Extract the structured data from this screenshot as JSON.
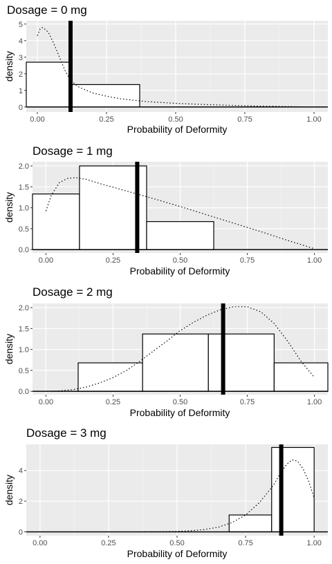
{
  "chart_data": [
    {
      "type": "bar",
      "title": "Dosage = 0 mg",
      "xlabel": "Probability of Deformity",
      "ylabel": "density",
      "xlim": [
        -0.04,
        1.05
      ],
      "ylim": [
        -0.3,
        5.2
      ],
      "x_ticks": [
        "0.00",
        "0.25",
        "0.50",
        "0.75",
        "1.00"
      ],
      "y_ticks": [
        "0",
        "1",
        "2",
        "3",
        "4",
        "5"
      ],
      "bins": [
        {
          "x0": -0.04,
          "x1": 0.12,
          "density": 2.7
        },
        {
          "x0": 0.12,
          "x1": 0.37,
          "density": 1.35
        }
      ],
      "vline": 0.12,
      "curve": {
        "x": [
          0.0,
          0.01,
          0.02,
          0.04,
          0.06,
          0.08,
          0.1,
          0.12,
          0.15,
          0.2,
          0.25,
          0.3,
          0.35,
          0.4,
          0.5,
          0.6,
          0.7,
          0.8,
          0.9,
          1.0
        ],
        "y": [
          4.3,
          4.7,
          4.8,
          4.5,
          3.8,
          3.0,
          2.2,
          1.6,
          1.2,
          0.85,
          0.65,
          0.5,
          0.4,
          0.32,
          0.22,
          0.15,
          0.1,
          0.06,
          0.03,
          0.0
        ]
      }
    },
    {
      "type": "bar",
      "title": "Dosage = 1 mg",
      "xlabel": "Probability of Deformity",
      "ylabel": "density",
      "xlim": [
        -0.05,
        1.05
      ],
      "ylim": [
        -0.08,
        2.1
      ],
      "x_ticks": [
        "0.00",
        "0.25",
        "0.50",
        "0.75",
        "1.00"
      ],
      "y_ticks": [
        "0.0",
        "0.5",
        "1.0",
        "1.5",
        "2.0"
      ],
      "bins": [
        {
          "x0": -0.05,
          "x1": 0.125,
          "density": 1.33
        },
        {
          "x0": 0.125,
          "x1": 0.375,
          "density": 2.0
        },
        {
          "x0": 0.375,
          "x1": 0.625,
          "density": 0.67
        }
      ],
      "vline": 0.34,
      "curve": {
        "x": [
          0.0,
          0.02,
          0.05,
          0.08,
          0.11,
          0.15,
          0.2,
          0.3,
          0.4,
          0.5,
          0.6,
          0.7,
          0.8,
          0.9,
          1.0
        ],
        "y": [
          0.92,
          1.3,
          1.6,
          1.7,
          1.72,
          1.68,
          1.58,
          1.4,
          1.22,
          1.03,
          0.83,
          0.63,
          0.43,
          0.22,
          0.02
        ]
      }
    },
    {
      "type": "bar",
      "title": "Dosage = 2 mg",
      "xlabel": "Probability of Deformity",
      "ylabel": "density",
      "xlim": [
        -0.05,
        1.05
      ],
      "ylim": [
        -0.08,
        2.1
      ],
      "x_ticks": [
        "0.00",
        "0.25",
        "0.50",
        "0.75",
        "1.00"
      ],
      "y_ticks": [
        "0.0",
        "0.5",
        "1.0",
        "1.5",
        "2.0"
      ],
      "bins": [
        {
          "x0": 0.12,
          "x1": 0.36,
          "density": 0.68
        },
        {
          "x0": 0.36,
          "x1": 0.605,
          "density": 1.37
        },
        {
          "x0": 0.605,
          "x1": 0.85,
          "density": 1.37
        },
        {
          "x0": 0.85,
          "x1": 1.05,
          "density": 0.68
        }
      ],
      "vline": 0.66,
      "curve": {
        "x": [
          0.0,
          0.05,
          0.1,
          0.15,
          0.2,
          0.25,
          0.3,
          0.35,
          0.4,
          0.45,
          0.5,
          0.55,
          0.6,
          0.65,
          0.7,
          0.75,
          0.8,
          0.85,
          0.9,
          0.95,
          1.0
        ],
        "y": [
          0.0,
          0.01,
          0.04,
          0.1,
          0.2,
          0.33,
          0.5,
          0.72,
          0.96,
          1.2,
          1.45,
          1.65,
          1.82,
          1.95,
          2.02,
          2.02,
          1.9,
          1.62,
          1.2,
          0.72,
          0.33
        ]
      }
    },
    {
      "type": "bar",
      "title": "Dosage = 3 mg",
      "xlabel": "Probability of Deformity",
      "ylabel": "density",
      "xlim": [
        -0.05,
        1.05
      ],
      "ylim": [
        -0.25,
        5.7
      ],
      "x_ticks": [
        "0.00",
        "0.25",
        "0.50",
        "0.75",
        "1.00"
      ],
      "y_ticks": [
        "0",
        "2",
        "4"
      ],
      "bins": [
        {
          "x0": 0.69,
          "x1": 0.845,
          "density": 1.1
        },
        {
          "x0": 0.845,
          "x1": 1.0,
          "density": 5.5
        }
      ],
      "vline": 0.88,
      "curve": {
        "x": [
          0.38,
          0.45,
          0.5,
          0.55,
          0.6,
          0.65,
          0.7,
          0.75,
          0.8,
          0.85,
          0.88,
          0.9,
          0.92,
          0.94,
          0.96,
          0.98,
          1.0
        ],
        "y": [
          0.0,
          0.01,
          0.03,
          0.07,
          0.15,
          0.3,
          0.6,
          1.1,
          1.9,
          3.0,
          3.9,
          4.4,
          4.7,
          4.6,
          4.1,
          3.3,
          2.2
        ]
      }
    }
  ]
}
